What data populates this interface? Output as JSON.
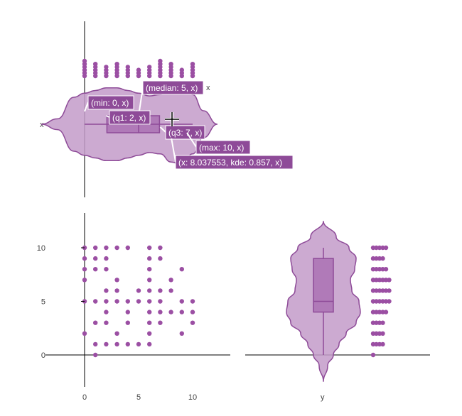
{
  "chart_data": [
    {
      "type": "violin",
      "orientation": "horizontal",
      "panel": "top-left",
      "ytick_labels": [
        "x"
      ],
      "series_label": "x",
      "stats": {
        "min": 0,
        "q1": 2,
        "median": 5,
        "q3": 7,
        "max": 10
      },
      "strip_values": [
        0,
        1,
        2,
        3,
        4,
        5,
        6,
        7,
        8,
        9,
        10
      ],
      "tooltips": [
        {
          "label": "(median: 5, x)"
        },
        {
          "label": "(min: 0, x)"
        },
        {
          "label": "(q1: 2, x)"
        },
        {
          "label": "(q3: 7, x)"
        },
        {
          "label": "(max: 10, x)"
        },
        {
          "label": "(x: 8.037553, kde: 0.857, x)"
        }
      ],
      "color": "#9b4fa3"
    },
    {
      "type": "scatter",
      "panel": "bottom-left",
      "xticks": [
        "0",
        "5",
        "10"
      ],
      "yticks": [
        "0",
        "5",
        "10"
      ],
      "xlim": [
        0,
        10
      ],
      "ylim": [
        0,
        10
      ],
      "points": [
        [
          0,
          10
        ],
        [
          0,
          9
        ],
        [
          0,
          8
        ],
        [
          0,
          7
        ],
        [
          0,
          5
        ],
        [
          0,
          2
        ],
        [
          1,
          1
        ],
        [
          1,
          0
        ],
        [
          1,
          10
        ],
        [
          2,
          10
        ],
        [
          3,
          10
        ],
        [
          4,
          10
        ],
        [
          6,
          10
        ],
        [
          7,
          10
        ],
        [
          1,
          9
        ],
        [
          2,
          9
        ],
        [
          6,
          9
        ],
        [
          7,
          9
        ],
        [
          1,
          8
        ],
        [
          2,
          8
        ],
        [
          6,
          8
        ],
        [
          9,
          8
        ],
        [
          3,
          7
        ],
        [
          6,
          7
        ],
        [
          8,
          7
        ],
        [
          2,
          6
        ],
        [
          3,
          6
        ],
        [
          5,
          6
        ],
        [
          6,
          6
        ],
        [
          7,
          6
        ],
        [
          8,
          6
        ],
        [
          1,
          5
        ],
        [
          2,
          5
        ],
        [
          3,
          5
        ],
        [
          4,
          5
        ],
        [
          5,
          5
        ],
        [
          6,
          5
        ],
        [
          7,
          5
        ],
        [
          9,
          5
        ],
        [
          10,
          5
        ],
        [
          2,
          4
        ],
        [
          4,
          4
        ],
        [
          6,
          4
        ],
        [
          7,
          4
        ],
        [
          8,
          4
        ],
        [
          9,
          4
        ],
        [
          10,
          4
        ],
        [
          1,
          3
        ],
        [
          2,
          3
        ],
        [
          4,
          3
        ],
        [
          6,
          3
        ],
        [
          7,
          3
        ],
        [
          10,
          3
        ],
        [
          3,
          2
        ],
        [
          6,
          2
        ],
        [
          9,
          2
        ],
        [
          2,
          1
        ],
        [
          3,
          1
        ],
        [
          4,
          1
        ],
        [
          5,
          1
        ],
        [
          6,
          1
        ]
      ],
      "color": "#9b4fa3"
    },
    {
      "type": "violin",
      "orientation": "vertical",
      "panel": "bottom-right",
      "xtick_labels": [
        "y"
      ],
      "stats": {
        "min": 0,
        "q1": 4,
        "median": 5,
        "q3": 9,
        "max": 10
      },
      "strip_values": [
        0,
        1,
        2,
        3,
        4,
        5,
        6,
        7,
        8,
        9,
        10
      ],
      "color": "#9b4fa3"
    }
  ]
}
